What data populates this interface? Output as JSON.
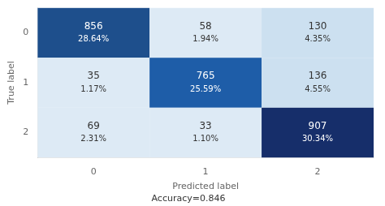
{
  "chart_data": {
    "type": "heatmap",
    "x_label": "Predicted label",
    "y_label": "True label",
    "categories": [
      "0",
      "1",
      "2"
    ],
    "y_categories": [
      "0",
      "1",
      "2"
    ],
    "values": [
      [
        856,
        58,
        130
      ],
      [
        35,
        765,
        136
      ],
      [
        69,
        33,
        907
      ]
    ],
    "percentages": [
      [
        "28.64%",
        "1.94%",
        "4.35%"
      ],
      [
        "1.17%",
        "25.59%",
        "4.55%"
      ],
      [
        "2.31%",
        "1.10%",
        "30.34%"
      ]
    ],
    "colors": [
      [
        "#1e4f8c",
        "#ddeaf5",
        "#cce0f0"
      ],
      [
        "#ddeaf5",
        "#1e5da8",
        "#cce0f0"
      ],
      [
        "#ddeaf5",
        "#ddeaf5",
        "#162e6a"
      ]
    ],
    "data_labels": true,
    "grid": false,
    "annotations": [
      "Accuracy=0.846"
    ]
  }
}
